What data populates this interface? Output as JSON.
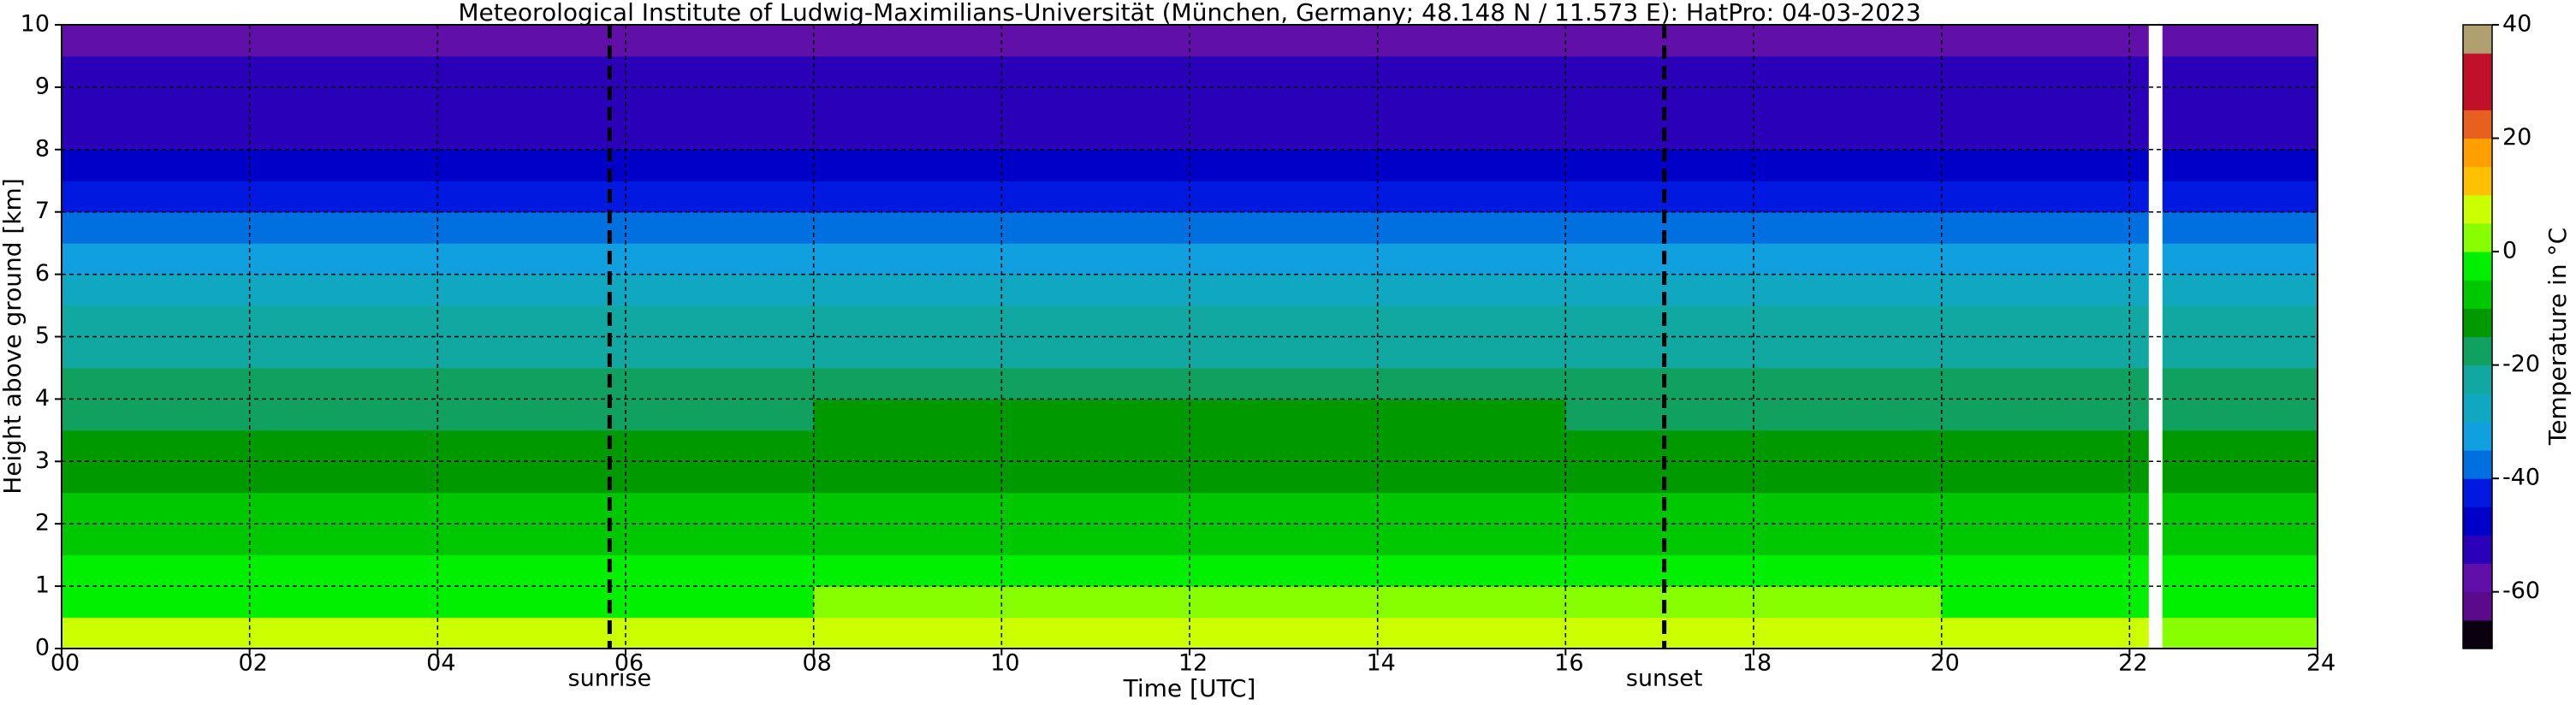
{
  "chart_data": {
    "type": "heatmap",
    "title": "Meteorological Institute of Ludwig-Maximilians-Universität (München, Germany; 48.148 N / 11.573 E):    HatPro: 04-03-2023",
    "x_label": "Time [UTC]",
    "y_label": "Height above ground [km]",
    "xlim": [
      0,
      24
    ],
    "ylim": [
      0,
      10
    ],
    "xticks": [
      {
        "value": 0,
        "label": "00"
      },
      {
        "value": 2,
        "label": "02"
      },
      {
        "value": 4,
        "label": "04"
      },
      {
        "value": 6,
        "label": "06"
      },
      {
        "value": 8,
        "label": "08"
      },
      {
        "value": 10,
        "label": "10"
      },
      {
        "value": 12,
        "label": "12"
      },
      {
        "value": 14,
        "label": "14"
      },
      {
        "value": 16,
        "label": "16"
      },
      {
        "value": 18,
        "label": "18"
      },
      {
        "value": 20,
        "label": "20"
      },
      {
        "value": 22,
        "label": "22"
      },
      {
        "value": 24,
        "label": "24"
      }
    ],
    "yticks": [
      0,
      1,
      2,
      3,
      4,
      5,
      6,
      7,
      8,
      9,
      10
    ],
    "grid": true,
    "x_edges": [
      0,
      4,
      8,
      12,
      16,
      20,
      22.2,
      22.35,
      24
    ],
    "y_edges": [
      0,
      0.5,
      1,
      1.5,
      2,
      2.5,
      3,
      3.5,
      4,
      4.5,
      5,
      5.5,
      6,
      6.5,
      7,
      7.5,
      8,
      8.5,
      9,
      9.5,
      10
    ],
    "z": [
      [
        6,
        6,
        7,
        7,
        6,
        5,
        null,
        4
      ],
      [
        -1,
        -1,
        0,
        1,
        0,
        -1,
        null,
        -2
      ],
      [
        -4,
        -4,
        -3,
        -3,
        -3,
        -4,
        null,
        -4
      ],
      [
        -6,
        -6,
        -6,
        -6,
        -6,
        -6,
        null,
        -6
      ],
      [
        -8,
        -8,
        -8,
        -8,
        -8,
        -8,
        null,
        -9
      ],
      [
        -11,
        -11,
        -11,
        -11,
        -11,
        -11,
        null,
        -11
      ],
      [
        -13,
        -13,
        -12,
        -13,
        -13,
        -13,
        null,
        -13
      ],
      [
        -16,
        -16,
        -15,
        -15,
        -16,
        -16,
        null,
        -16
      ],
      [
        -18,
        -19,
        -19,
        -19,
        -19,
        -19,
        null,
        -19
      ],
      [
        -21,
        -21,
        -21,
        -22,
        -22,
        -22,
        null,
        -22
      ],
      [
        -25,
        -25,
        -25,
        -25,
        -25,
        -25,
        null,
        -25
      ],
      [
        -28,
        -28,
        -28,
        -28,
        -28,
        -28,
        null,
        -28
      ],
      [
        -32,
        -32,
        -32,
        -32,
        -32,
        -32,
        null,
        -32
      ],
      [
        -36,
        -36,
        -36,
        -36,
        -36,
        -36,
        null,
        -36
      ],
      [
        -41,
        -41,
        -41,
        -41,
        -41,
        -41,
        null,
        -41
      ],
      [
        -46,
        -46,
        -46,
        -46,
        -46,
        -46,
        null,
        -46
      ],
      [
        -51,
        -51,
        -51,
        -51,
        -51,
        -51,
        null,
        -51
      ],
      [
        -52,
        -52,
        -52,
        -52,
        -52,
        -52,
        null,
        -52
      ],
      [
        -53,
        -53,
        -53,
        -53,
        -53,
        -53,
        null,
        -53
      ],
      [
        -58,
        -58,
        -57,
        -58,
        -57,
        -58,
        null,
        -58
      ]
    ],
    "annotations": [
      {
        "text": "sunrise",
        "x": 5.83
      },
      {
        "text": "sunset",
        "x": 17.05
      }
    ],
    "colorbar": {
      "label": "Temperature in $^\\circ$C",
      "label_text": "Temperature in °C",
      "lim": [
        -70,
        40
      ],
      "ticks": [
        -60,
        -40,
        -20,
        0,
        20,
        40
      ],
      "levels": [
        -70,
        -65,
        -60,
        -55,
        -50,
        -45,
        -40,
        -35,
        -30,
        -25,
        -20,
        -15,
        -10,
        -5,
        0,
        5,
        10,
        15,
        20,
        25,
        30,
        35,
        40
      ],
      "colors": [
        "#0a0010",
        "#5a0a8a",
        "#6010a8",
        "#2a00b8",
        "#0000c8",
        "#0018e0",
        "#0070e0",
        "#10a0e0",
        "#10a8c0",
        "#10a8a0",
        "#10a060",
        "#009a00",
        "#00c800",
        "#00f000",
        "#88ff00",
        "#ccff00",
        "#ffc000",
        "#ffa000",
        "#e86020",
        "#c0102a",
        "#c0102a",
        "#b0a070"
      ]
    }
  }
}
